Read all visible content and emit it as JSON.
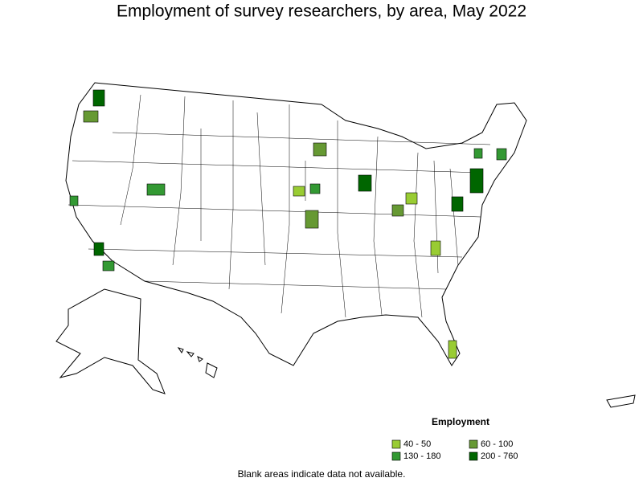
{
  "title": "Employment of survey researchers, by area, May 2022",
  "legend": {
    "title": "Employment",
    "items": [
      {
        "label": "40 - 50",
        "color": "#99cc33"
      },
      {
        "label": "60 - 100",
        "color": "#669933"
      },
      {
        "label": "130 - 180",
        "color": "#339933"
      },
      {
        "label": "200 - 760",
        "color": "#006600"
      }
    ]
  },
  "footnote": "Blank areas indicate data not available."
}
